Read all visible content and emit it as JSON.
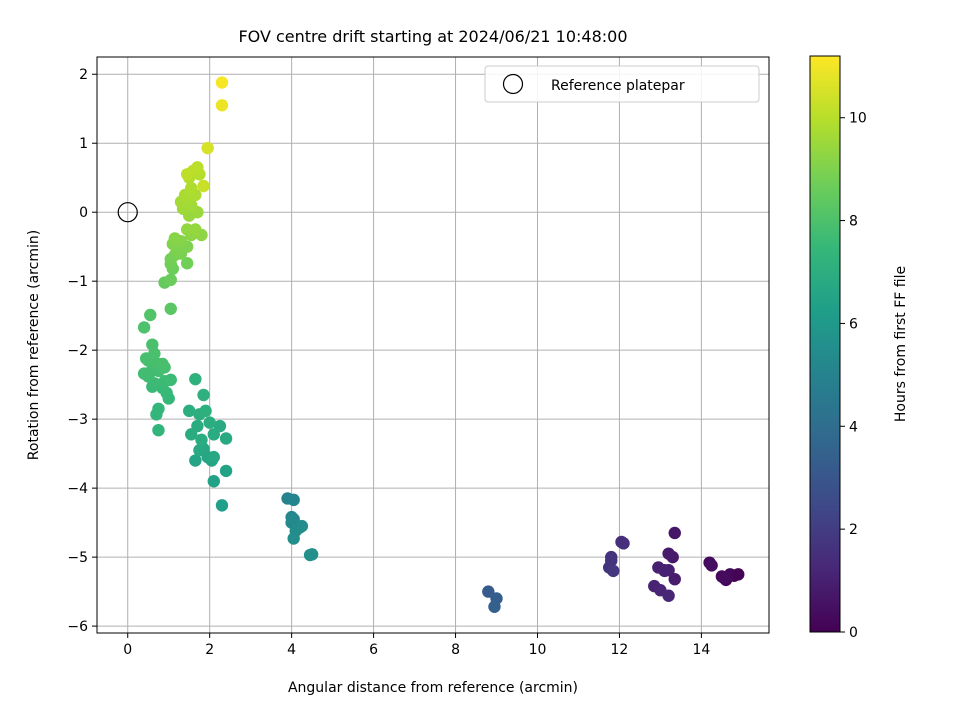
{
  "chart_data": {
    "type": "scatter",
    "title": "FOV centre drift starting at 2024/06/21 10:48:00",
    "xlabel": "Angular distance from reference (arcmin)",
    "ylabel": "Rotation from reference (arcmin)",
    "xlim": [
      -0.75,
      15.65
    ],
    "ylim": [
      -6.1,
      2.25
    ],
    "xticks": [
      0,
      2,
      4,
      6,
      8,
      10,
      12,
      14
    ],
    "yticks": [
      -6,
      -5,
      -4,
      -3,
      -2,
      -1,
      0,
      1,
      2
    ],
    "grid": true,
    "legend": {
      "position": "top-right",
      "entries": [
        "Reference platepar"
      ]
    },
    "colorbar": {
      "label": "Hours from first FF file",
      "colormap": "viridis",
      "range": [
        0,
        11.2
      ],
      "ticks": [
        0,
        2,
        4,
        6,
        8,
        10
      ]
    },
    "reference_point": {
      "x": 0,
      "y": 0,
      "label": "Reference platepar"
    },
    "series": [
      {
        "points": [
          [
            14.8,
            -5.27,
            0.1
          ],
          [
            14.6,
            -5.33,
            0.15
          ],
          [
            14.5,
            -5.28,
            0.2
          ],
          [
            14.7,
            -5.25,
            0.25
          ],
          [
            14.2,
            -5.08,
            0.3
          ],
          [
            14.25,
            -5.12,
            0.4
          ],
          [
            14.9,
            -5.25,
            0.12
          ],
          [
            14.55,
            -5.3,
            0.35
          ],
          [
            13.35,
            -4.65,
            0.7
          ],
          [
            13.3,
            -5.0,
            0.75
          ],
          [
            13.2,
            -4.95,
            0.8
          ],
          [
            13.35,
            -5.32,
            0.85
          ],
          [
            13.1,
            -5.19,
            0.9
          ],
          [
            13.2,
            -5.19,
            0.95
          ],
          [
            12.95,
            -5.15,
            1.0
          ],
          [
            13.1,
            -5.2,
            1.05
          ],
          [
            12.85,
            -5.42,
            1.1
          ],
          [
            13.0,
            -5.48,
            1.15
          ],
          [
            13.2,
            -5.56,
            1.2
          ],
          [
            12.05,
            -4.78,
            1.5
          ],
          [
            12.1,
            -4.8,
            1.55
          ],
          [
            11.8,
            -5.0,
            1.6
          ],
          [
            11.8,
            -5.05,
            1.65
          ],
          [
            11.75,
            -5.15,
            1.7
          ],
          [
            11.85,
            -5.2,
            1.75
          ],
          [
            8.8,
            -5.5,
            3.2
          ],
          [
            9.0,
            -5.6,
            3.3
          ],
          [
            8.95,
            -5.72,
            3.4
          ],
          [
            3.9,
            -4.15,
            5.0
          ],
          [
            4.05,
            -4.17,
            5.1
          ],
          [
            4.0,
            -4.42,
            5.2
          ],
          [
            4.05,
            -4.45,
            5.25
          ],
          [
            4.0,
            -4.5,
            5.3
          ],
          [
            4.2,
            -4.57,
            5.35
          ],
          [
            4.25,
            -4.55,
            5.4
          ],
          [
            4.1,
            -4.62,
            5.45
          ],
          [
            4.05,
            -4.73,
            5.5
          ],
          [
            4.45,
            -4.97,
            5.55
          ],
          [
            4.5,
            -4.96,
            5.6
          ],
          [
            2.3,
            -4.25,
            6.3
          ],
          [
            2.1,
            -3.9,
            6.4
          ],
          [
            2.4,
            -3.75,
            6.45
          ],
          [
            2.05,
            -3.6,
            6.5
          ],
          [
            1.65,
            -3.6,
            6.55
          ],
          [
            1.95,
            -3.55,
            6.6
          ],
          [
            2.1,
            -3.55,
            6.65
          ],
          [
            1.85,
            -3.43,
            6.7
          ],
          [
            1.75,
            -3.45,
            6.72
          ],
          [
            2.4,
            -3.28,
            6.75
          ],
          [
            2.25,
            -3.1,
            6.8
          ],
          [
            2.1,
            -3.22,
            6.85
          ],
          [
            1.8,
            -3.3,
            6.88
          ],
          [
            1.55,
            -3.22,
            6.9
          ],
          [
            1.7,
            -3.1,
            6.92
          ],
          [
            2.0,
            -3.05,
            6.95
          ],
          [
            1.75,
            -2.93,
            7.0
          ],
          [
            1.5,
            -2.88,
            7.02
          ],
          [
            1.9,
            -2.88,
            7.05
          ],
          [
            1.85,
            -2.65,
            7.1
          ],
          [
            1.65,
            -2.42,
            7.15
          ],
          [
            0.75,
            -3.16,
            7.3
          ],
          [
            0.7,
            -2.93,
            7.35
          ],
          [
            0.75,
            -2.85,
            7.4
          ],
          [
            1.0,
            -2.7,
            7.45
          ],
          [
            0.95,
            -2.62,
            7.5
          ],
          [
            0.85,
            -2.55,
            7.55
          ],
          [
            0.6,
            -2.53,
            7.55
          ],
          [
            0.65,
            -2.48,
            7.6
          ],
          [
            0.9,
            -2.45,
            7.62
          ],
          [
            1.05,
            -2.43,
            7.65
          ],
          [
            0.5,
            -2.38,
            7.7
          ],
          [
            0.4,
            -2.34,
            7.72
          ],
          [
            0.55,
            -2.32,
            7.75
          ],
          [
            0.75,
            -2.3,
            7.77
          ],
          [
            0.65,
            -2.25,
            7.8
          ],
          [
            0.9,
            -2.25,
            7.82
          ],
          [
            0.75,
            -2.2,
            7.85
          ],
          [
            0.5,
            -2.15,
            7.87
          ],
          [
            0.45,
            -2.12,
            7.88
          ],
          [
            0.85,
            -2.2,
            7.9
          ],
          [
            0.65,
            -2.05,
            7.92
          ],
          [
            0.6,
            -1.92,
            7.95
          ],
          [
            0.4,
            -1.67,
            8.0
          ],
          [
            0.55,
            -1.49,
            8.1
          ],
          [
            1.05,
            -1.4,
            8.3
          ],
          [
            0.9,
            -1.02,
            8.5
          ],
          [
            1.05,
            -0.98,
            8.6
          ],
          [
            1.1,
            -0.82,
            8.65
          ],
          [
            1.05,
            -0.75,
            8.7
          ],
          [
            1.45,
            -0.74,
            8.75
          ],
          [
            1.05,
            -0.68,
            8.8
          ],
          [
            1.15,
            -0.62,
            8.85
          ],
          [
            1.3,
            -0.6,
            8.9
          ],
          [
            1.2,
            -0.55,
            8.95
          ],
          [
            1.45,
            -0.5,
            9.0
          ],
          [
            1.1,
            -0.46,
            9.05
          ],
          [
            1.3,
            -0.42,
            9.1
          ],
          [
            1.15,
            -0.38,
            9.15
          ],
          [
            1.55,
            -0.33,
            9.2
          ],
          [
            1.8,
            -0.33,
            9.25
          ],
          [
            1.6,
            -0.3,
            9.3
          ],
          [
            1.45,
            -0.25,
            9.35
          ],
          [
            1.65,
            -0.25,
            9.4
          ],
          [
            1.5,
            -0.05,
            9.45
          ],
          [
            1.7,
            0.0,
            9.5
          ],
          [
            1.35,
            0.05,
            9.55
          ],
          [
            1.55,
            0.1,
            9.6
          ],
          [
            1.3,
            0.15,
            9.65
          ],
          [
            1.5,
            0.2,
            9.7
          ],
          [
            1.4,
            0.25,
            9.75
          ],
          [
            1.65,
            0.25,
            9.8
          ],
          [
            1.55,
            0.35,
            9.85
          ],
          [
            1.5,
            0.5,
            9.9
          ],
          [
            1.75,
            0.55,
            9.95
          ],
          [
            1.6,
            0.6,
            10.0
          ],
          [
            1.7,
            0.65,
            10.05
          ],
          [
            1.45,
            0.55,
            10.1
          ],
          [
            1.85,
            0.38,
            10.3
          ],
          [
            1.95,
            0.93,
            10.5
          ],
          [
            2.3,
            1.55,
            10.9
          ],
          [
            2.3,
            1.88,
            11.1
          ]
        ]
      }
    ]
  }
}
